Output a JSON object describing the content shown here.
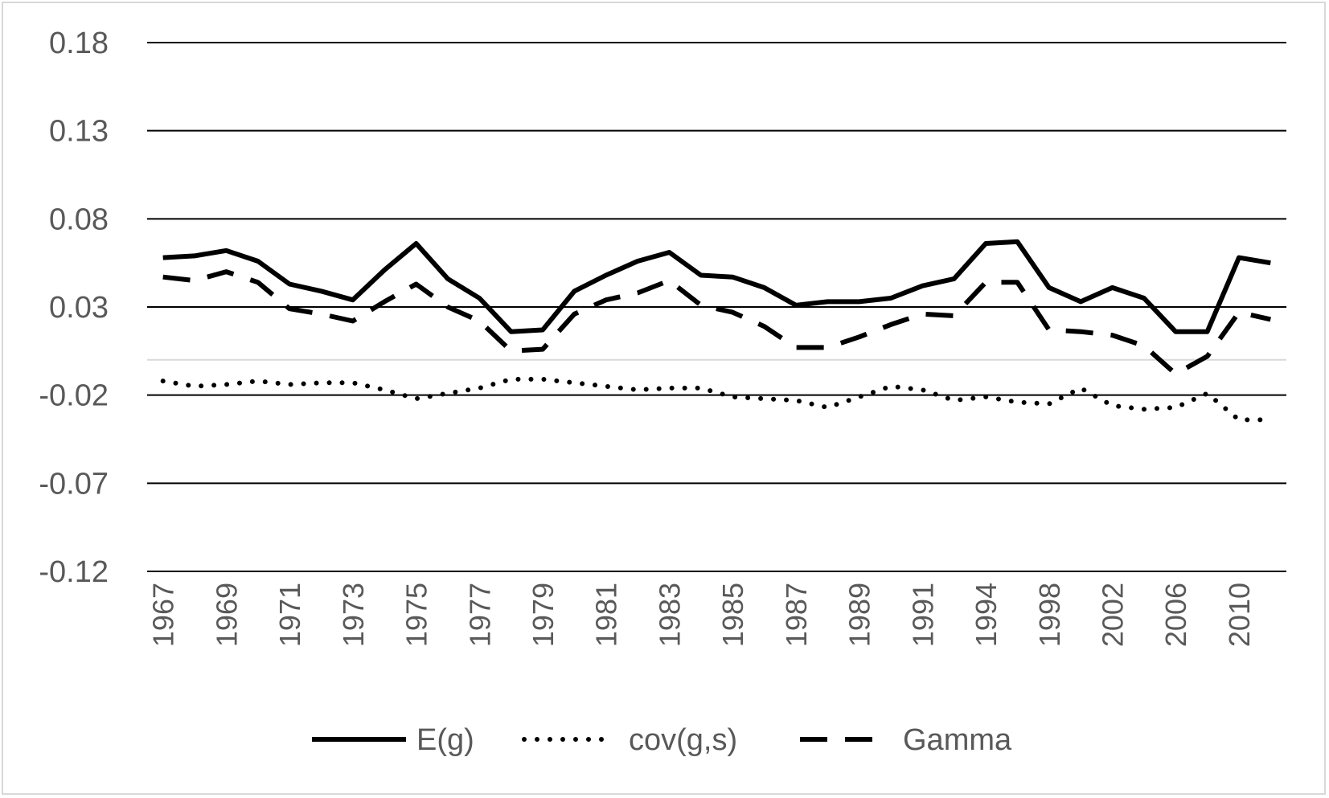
{
  "chart_data": {
    "type": "line",
    "title": "",
    "xlabel": "",
    "ylabel": "",
    "ylim": [
      -0.12,
      0.18
    ],
    "yticks": [
      "0.18",
      "0.13",
      "0.08",
      "0.03",
      "-0.02",
      "-0.07",
      "-0.12"
    ],
    "ytick_values": [
      0.18,
      0.13,
      0.08,
      0.03,
      -0.02,
      -0.07,
      -0.12
    ],
    "grid": true,
    "legend_position": "bottom",
    "x": [
      "1967",
      "1968",
      "1969",
      "1970",
      "1971",
      "1972",
      "1973",
      "1974",
      "1975",
      "1976",
      "1977",
      "1978",
      "1979",
      "1980",
      "1981",
      "1982",
      "1983",
      "1984",
      "1985",
      "1986",
      "1987",
      "1988",
      "1989",
      "1990",
      "1991",
      "1992",
      "1994",
      "1996",
      "1998",
      "2000",
      "2002",
      "2004",
      "2006",
      "2008",
      "2010",
      "2012"
    ],
    "x_tick_labels": [
      "1967",
      "1969",
      "1971",
      "1973",
      "1975",
      "1977",
      "1979",
      "1981",
      "1983",
      "1985",
      "1987",
      "1989",
      "1991",
      "1994",
      "1998",
      "2002",
      "2006",
      "2010"
    ],
    "series": [
      {
        "name": "E(g)",
        "style": "solid",
        "color": "#000000",
        "values": [
          0.058,
          0.059,
          0.062,
          0.056,
          0.043,
          0.039,
          0.034,
          0.051,
          0.066,
          0.046,
          0.035,
          0.016,
          0.017,
          0.039,
          0.048,
          0.056,
          0.061,
          0.048,
          0.047,
          0.041,
          0.031,
          0.033,
          0.033,
          0.035,
          0.042,
          0.046,
          0.066,
          0.067,
          0.041,
          0.033,
          0.041,
          0.035,
          0.016,
          0.016,
          0.058,
          0.055
        ]
      },
      {
        "name": "cov(g,s)",
        "style": "dotted",
        "color": "#000000",
        "values": [
          -0.012,
          -0.015,
          -0.014,
          -0.012,
          -0.014,
          -0.013,
          -0.013,
          -0.017,
          -0.022,
          -0.019,
          -0.016,
          -0.011,
          -0.011,
          -0.013,
          -0.015,
          -0.017,
          -0.016,
          -0.016,
          -0.021,
          -0.022,
          -0.023,
          -0.027,
          -0.021,
          -0.015,
          -0.017,
          -0.023,
          -0.021,
          -0.024,
          -0.025,
          -0.016,
          -0.026,
          -0.028,
          -0.027,
          -0.019,
          -0.034,
          -0.034
        ]
      },
      {
        "name": "Gamma",
        "style": "dashed",
        "color": "#000000",
        "values": [
          0.047,
          0.045,
          0.05,
          0.044,
          0.029,
          0.026,
          0.022,
          0.033,
          0.043,
          0.03,
          0.022,
          0.005,
          0.006,
          0.026,
          0.034,
          0.038,
          0.045,
          0.031,
          0.027,
          0.019,
          0.007,
          0.007,
          0.013,
          0.02,
          0.026,
          0.025,
          0.044,
          0.044,
          0.017,
          0.016,
          0.014,
          0.008,
          -0.008,
          0.002,
          0.027,
          0.023
        ]
      }
    ]
  }
}
